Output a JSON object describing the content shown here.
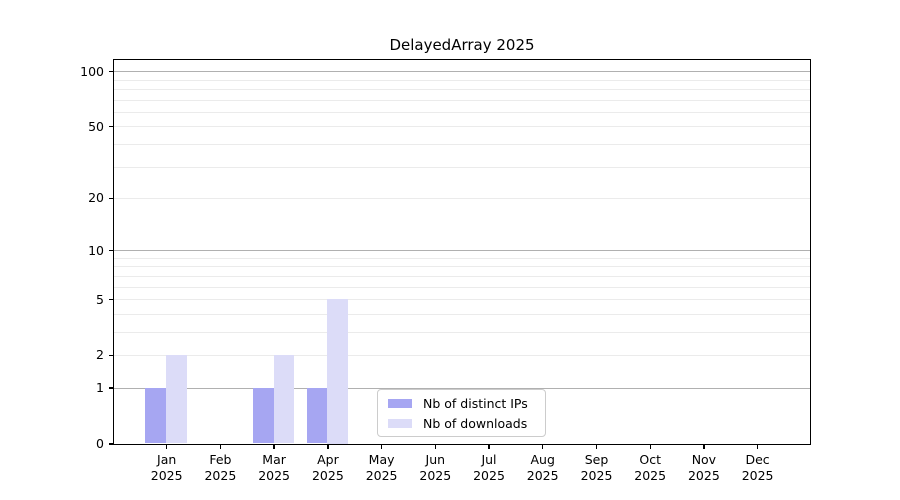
{
  "chart_data": {
    "type": "bar",
    "title": "DelayedArray 2025",
    "year": "2025",
    "categories": [
      "Jan",
      "Feb",
      "Mar",
      "Apr",
      "May",
      "Jun",
      "Jul",
      "Aug",
      "Sep",
      "Oct",
      "Nov",
      "Dec"
    ],
    "series": [
      {
        "name": "Nb of distinct IPs",
        "color": "#a6a6f2",
        "values": [
          1,
          0,
          1,
          1,
          0,
          0,
          0,
          0,
          0,
          0,
          0,
          0
        ]
      },
      {
        "name": "Nb of downloads",
        "color": "#dcdcf8",
        "values": [
          2,
          0,
          2,
          5,
          0,
          0,
          0,
          0,
          0,
          0,
          0,
          0
        ]
      }
    ],
    "yscale": "log1p",
    "xlabel": "",
    "ylabel": "",
    "ylim": [
      0,
      116
    ],
    "grid": true,
    "legend_position": "lower center-right inside plot",
    "y_ticks": [
      {
        "label": "0",
        "value": 0
      },
      {
        "label": "1",
        "value": 1
      },
      {
        "label": "2",
        "value": 2
      },
      {
        "label": "5",
        "value": 5
      },
      {
        "label": "10",
        "value": 10
      },
      {
        "label": "20",
        "value": 20
      },
      {
        "label": "50",
        "value": 50
      },
      {
        "label": "100",
        "value": 100
      }
    ],
    "major_gridline_values": [
      1,
      10,
      100
    ],
    "minor_gridline_values": [
      2,
      3,
      4,
      5,
      6,
      7,
      8,
      9,
      20,
      30,
      40,
      50,
      60,
      70,
      80,
      90
    ],
    "colors": {
      "major_grid": "#b0b0b0",
      "minor_grid": "#ebebeb",
      "axis": "#000000",
      "legend_border": "#cccccc",
      "background": "#ffffff"
    }
  }
}
